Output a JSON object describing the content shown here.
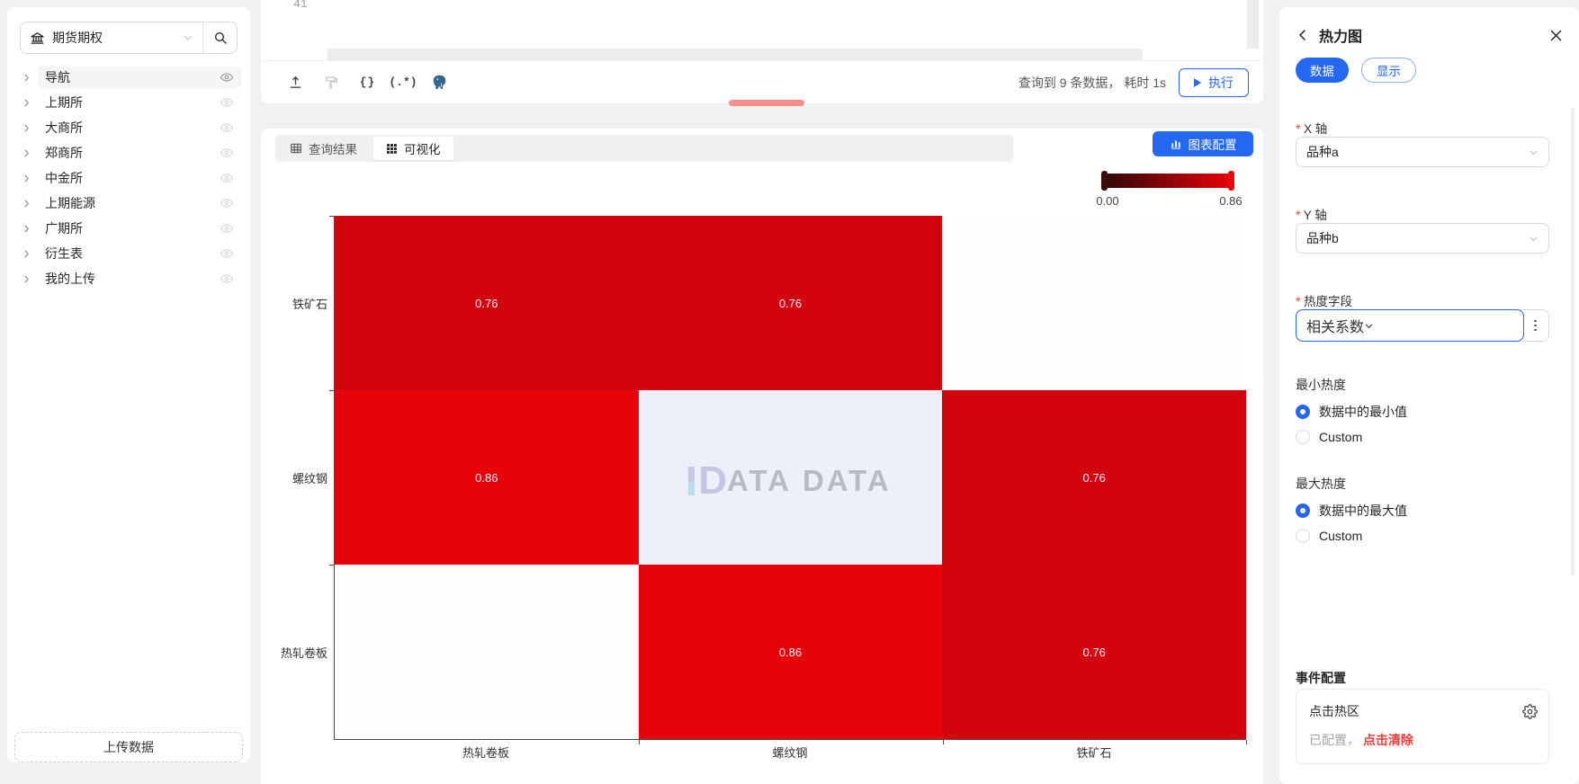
{
  "colors": {
    "primary": "#2468f2",
    "danger": "#f23c3c",
    "page_bg": "#f0f1f2",
    "drag_handle": "#fa8c8c",
    "heat_low": "#300808",
    "heat_high": "#e60309"
  },
  "sidebar": {
    "db_selector": {
      "value": "期货期权",
      "icon": "bank"
    },
    "search_icon": "search",
    "items": [
      {
        "label": "导航",
        "selected": true
      },
      {
        "label": "上期所",
        "selected": false
      },
      {
        "label": "大商所",
        "selected": false
      },
      {
        "label": "郑商所",
        "selected": false
      },
      {
        "label": "中金所",
        "selected": false
      },
      {
        "label": "上期能源",
        "selected": false
      },
      {
        "label": "广期所",
        "selected": false
      },
      {
        "label": "衍生表",
        "selected": false
      },
      {
        "label": "我的上传",
        "selected": false
      }
    ],
    "upload_button": "上传数据"
  },
  "editor": {
    "line_number": "41",
    "toolbar_icons": [
      "export",
      "format-paint",
      "braces",
      "regex",
      "postgresql"
    ],
    "status_text": "查询到 9 条数据， 耗时 1s",
    "run_button": "执行"
  },
  "viz": {
    "tabs": [
      {
        "label": "查询结果",
        "active": false
      },
      {
        "label": "可视化",
        "active": true
      }
    ],
    "chart_config_button": "图表配置",
    "watermark": "DATA DATA"
  },
  "chart_data": {
    "type": "heatmap",
    "x_categories": [
      "热轧卷板",
      "螺纹钢",
      "铁矿石"
    ],
    "y_categories": [
      "铁矿石",
      "螺纹钢",
      "热轧卷板"
    ],
    "cells": [
      [
        {
          "value": 0.76,
          "color": "#d2050f"
        },
        {
          "value": 0.76,
          "color": "#d2050f"
        },
        {
          "value": null,
          "color": "#fefefe"
        }
      ],
      [
        {
          "value": 0.86,
          "color": "#e60309"
        },
        {
          "value": null,
          "color": "#edf0f8"
        },
        {
          "value": 0.76,
          "color": "#d2050f"
        }
      ],
      [
        {
          "value": null,
          "color": "#fdfdfd"
        },
        {
          "value": 0.86,
          "color": "#e60309"
        },
        {
          "value": 0.76,
          "color": "#d2050f"
        }
      ]
    ],
    "value_text_color": "#ffffff",
    "legend": {
      "min": "0.00",
      "max": "0.86"
    },
    "row_count": 9
  },
  "panel": {
    "title": "热力图",
    "tabs": [
      {
        "label": "数据",
        "active": true
      },
      {
        "label": "显示",
        "active": false
      }
    ],
    "fields": [
      {
        "label": "X 轴",
        "required": true,
        "value": "品种a"
      },
      {
        "label": "Y 轴",
        "required": true,
        "value": "品种b"
      },
      {
        "label": "热度字段",
        "required": true,
        "value": "相关系数",
        "focused": true
      }
    ],
    "min_heat": {
      "label": "最小热度",
      "options": [
        {
          "label": "数据中的最小值",
          "checked": true
        },
        {
          "label": "Custom",
          "checked": false
        }
      ]
    },
    "max_heat": {
      "label": "最大热度",
      "options": [
        {
          "label": "数据中的最大值",
          "checked": true
        },
        {
          "label": "Custom",
          "checked": false
        }
      ]
    },
    "event_config": {
      "label": "事件配置",
      "item_label": "点击热区",
      "status_prefix": "已配置，",
      "clear_action": "点击清除"
    }
  }
}
